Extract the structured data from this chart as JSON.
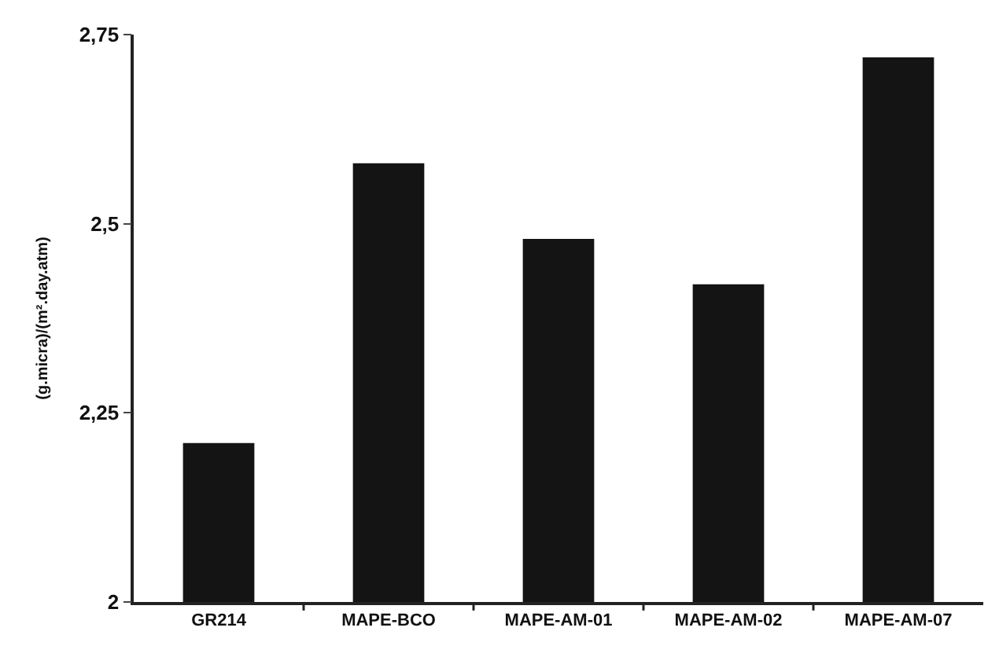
{
  "chart_data": {
    "type": "bar",
    "ylabel": "(g.micra)/(m².day.atm)",
    "categories": [
      "GR214",
      "MAPE-BCO",
      "MAPE-AM-01",
      "MAPE-AM-02",
      "MAPE-AM-07"
    ],
    "values": [
      2.21,
      2.58,
      2.48,
      2.42,
      2.72
    ],
    "color": "#141414",
    "ylim": [
      2,
      2.75
    ],
    "yticks": [
      2,
      {
        "value": 2.25,
        "label": "2,25"
      },
      {
        "value": 2.5,
        "label": "2,5"
      },
      {
        "value": 2.75,
        "label": "2,75"
      }
    ],
    "grid": false
  }
}
